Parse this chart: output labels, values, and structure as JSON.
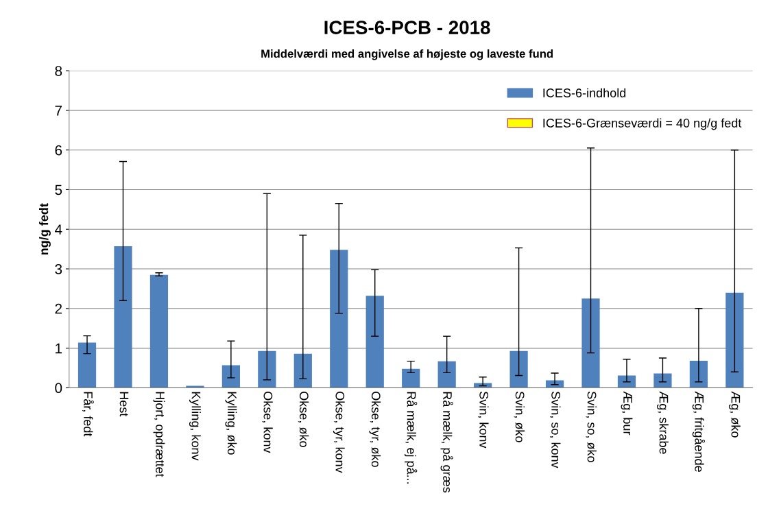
{
  "chart_data": {
    "type": "bar",
    "title": "ICES-6-PCB - 2018",
    "subtitle": "Middelværdi med angivelse af højeste og laveste fund",
    "ylabel": "ng/g fedt",
    "categories": [
      "Får, fedt",
      "Hest",
      "Hjort, opdrættet",
      "Kylling, konv",
      "Kylling, øko",
      "Okse, konv",
      "Okse, øko",
      "Okse, tyr, konv",
      "Okse, tyr, øko",
      "Rå mælk, ej på...",
      "Rå mælk, på græs",
      "Svin, konv",
      "Svin, øko",
      "Svin, so, konv",
      "Svin, so, øko",
      "Æg, bur",
      "Æg, skrabe",
      "Æg, fritgående",
      "Æg, øko"
    ],
    "series": [
      {
        "name": "ICES-6-indhold",
        "color": "#4f81bd",
        "values": [
          1.14,
          3.57,
          2.85,
          0.05,
          0.57,
          0.93,
          0.86,
          3.48,
          2.32,
          0.48,
          0.67,
          0.12,
          0.93,
          0.19,
          2.25,
          0.31,
          0.36,
          0.68,
          2.4
        ],
        "errors": [
          [
            0.86,
            1.31
          ],
          [
            2.2,
            5.71
          ],
          [
            2.82,
            2.9
          ],
          null,
          [
            0.25,
            1.18
          ],
          [
            0.2,
            4.9
          ],
          [
            0.23,
            3.85
          ],
          [
            1.88,
            4.65
          ],
          [
            1.3,
            2.98
          ],
          [
            0.38,
            0.67
          ],
          [
            0.38,
            1.3
          ],
          [
            0.05,
            0.27
          ],
          [
            0.31,
            3.53
          ],
          [
            0.08,
            0.37
          ],
          [
            0.88,
            6.05
          ],
          [
            0.15,
            0.72
          ],
          [
            0.15,
            0.75
          ],
          [
            0.15,
            2.0
          ],
          [
            0.4,
            6.0
          ]
        ]
      },
      {
        "name": "ICES-6-Grænseværdi = 40 ng/g fedt",
        "color": "#ffff00",
        "values": [
          null,
          null,
          null,
          null,
          null,
          null,
          null,
          null,
          null,
          null,
          null,
          null,
          null,
          null,
          null,
          null,
          null,
          null,
          null
        ]
      }
    ],
    "ylim": [
      0,
      8
    ],
    "yticks": [
      0,
      1,
      2,
      3,
      4,
      5,
      6,
      7,
      8
    ],
    "grid": "y",
    "legend": "top right"
  }
}
